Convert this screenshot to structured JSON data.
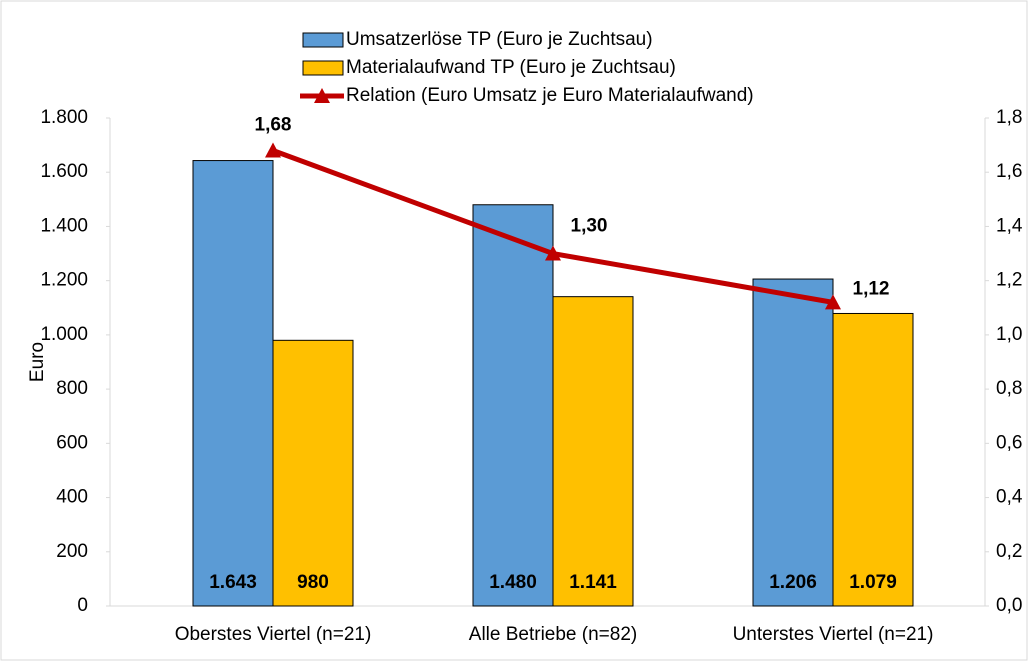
{
  "chart_data": {
    "type": "bar",
    "categories": [
      "Oberstes Viertel (n=21)",
      "Alle Betriebe (n=82)",
      "Unterstes Viertel (n=21)"
    ],
    "y_label": "Euro",
    "series": [
      {
        "name": "Umsatzerlöse TP (Euro je Zuchtsau)",
        "color": "#5b9bd5",
        "values": [
          1643,
          1480,
          1206
        ],
        "value_labels": [
          "1.643",
          "1.480",
          "1.206"
        ]
      },
      {
        "name": "Materialaufwand TP (Euro je Zuchtsau)",
        "color": "#ffc000",
        "values": [
          980,
          1141,
          1079
        ],
        "value_labels": [
          "980",
          "1.141",
          "1.079"
        ]
      },
      {
        "name": "Relation (Euro Umsatz je Euro Materialaufwand)",
        "color": "#c00000",
        "type": "line",
        "axis": "y2",
        "values": [
          1.68,
          1.3,
          1.12
        ],
        "value_labels": [
          "1,68",
          "1,30",
          "1,12"
        ]
      }
    ],
    "ylim": [
      0,
      1800
    ],
    "yticks": [
      0,
      200,
      400,
      600,
      800,
      {
        "value": 1000,
        "label": "1.000"
      },
      {
        "value": 1200,
        "label": "1.200"
      },
      {
        "value": 1400,
        "label": "1.400"
      },
      {
        "value": 1600,
        "label": "1.600"
      },
      {
        "value": 1800,
        "label": "1.800"
      }
    ],
    "y2lim": [
      0,
      1.8
    ],
    "y2ticks": [
      {
        "value": 0,
        "label": "0,0"
      },
      {
        "value": 0.2,
        "label": "0,2"
      },
      {
        "value": 0.4,
        "label": "0,4"
      },
      {
        "value": 0.6,
        "label": "0,6"
      },
      {
        "value": 0.8,
        "label": "0,8"
      },
      {
        "value": 1.0,
        "label": "1,0"
      },
      {
        "value": 1.2,
        "label": "1,2"
      },
      {
        "value": 1.4,
        "label": "1,4"
      },
      {
        "value": 1.6,
        "label": "1,6"
      },
      {
        "value": 1.8,
        "label": "1,8"
      }
    ],
    "grid": false
  }
}
